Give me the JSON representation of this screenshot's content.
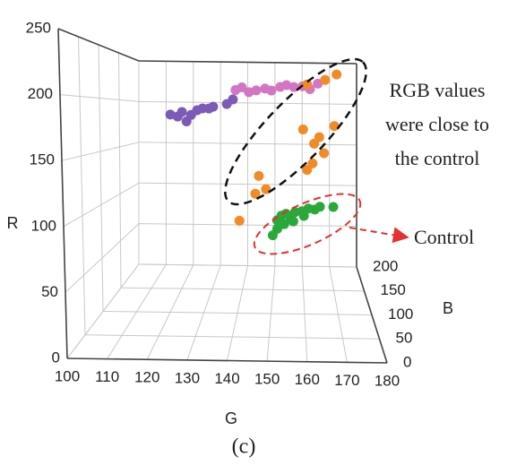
{
  "chart_data": {
    "type": "scatter3d",
    "x_label": "G",
    "y_label": "R",
    "z_label": "B",
    "xlim": [
      100,
      180
    ],
    "ylim": [
      0,
      250
    ],
    "zlim": [
      0,
      200
    ],
    "xticks": [
      100,
      110,
      120,
      130,
      140,
      150,
      160,
      170,
      180
    ],
    "yticks": [
      0,
      50,
      100,
      150,
      200,
      250
    ],
    "zticks": [
      0,
      50,
      100,
      150,
      200
    ],
    "grid": true,
    "series": [
      {
        "color": "#7b5bb5",
        "x": [
          116.8,
          119.2,
          120.6,
          122.1,
          123.6,
          125.6,
          127.4,
          129.5,
          130.9,
          135.4,
          137.4
        ],
        "y": [
          185,
          183,
          188,
          178,
          185,
          190,
          192,
          192,
          194,
          197,
          202
        ],
        "z": [
          150,
          150,
          150,
          150,
          150,
          150,
          150,
          150,
          150,
          150,
          150
        ]
      },
      {
        "color": "#d276c4",
        "x": [
          138.3,
          140.4,
          142.7,
          145.1,
          148,
          150.1,
          153,
          155.1,
          157.5,
          160.4,
          162.8,
          165.4
        ],
        "y": [
          212,
          215,
          210,
          212,
          214,
          212,
          216,
          218,
          216,
          217,
          214,
          220
        ],
        "z": [
          150,
          150,
          150,
          150,
          150,
          150,
          150,
          150,
          150,
          150,
          150,
          150
        ]
      },
      {
        "color": "#f28a25",
        "x": [
          161.9,
          167.8,
          171.6,
          160.4,
          164,
          165.7,
          167.2,
          170.7,
          163.4,
          161.6,
          145.7,
          148,
          144.5,
          139.2
        ],
        "y": [
          219,
          224,
          230,
          171,
          156,
          163,
          146,
          175,
          135,
          128,
          121,
          107,
          102,
          73
        ],
        "z": [
          150,
          150,
          150,
          150,
          150,
          150,
          150,
          150,
          150,
          150,
          150,
          150,
          150,
          150
        ]
      },
      {
        "color": "#2aa83a",
        "x": [
          151.6,
          153,
          154.5,
          156,
          157.5,
          159.8,
          161.9,
          164,
          165.7,
          170.1,
          150.1,
          151.6,
          153.9,
          156.9,
          160.4
        ],
        "y": [
          74,
          79,
          81,
          77,
          83,
          84,
          87,
          86,
          89,
          89,
          58,
          65,
          70,
          73,
          79
        ],
        "z": [
          150,
          150,
          150,
          150,
          150,
          150,
          150,
          150,
          150,
          150,
          150,
          150,
          150,
          150,
          150
        ]
      }
    ],
    "annotations": [
      {
        "lines": [
          "RGB values",
          "were close to",
          "the control"
        ]
      },
      {
        "lines": [
          "Control"
        ]
      }
    ],
    "caption": "(c)"
  }
}
